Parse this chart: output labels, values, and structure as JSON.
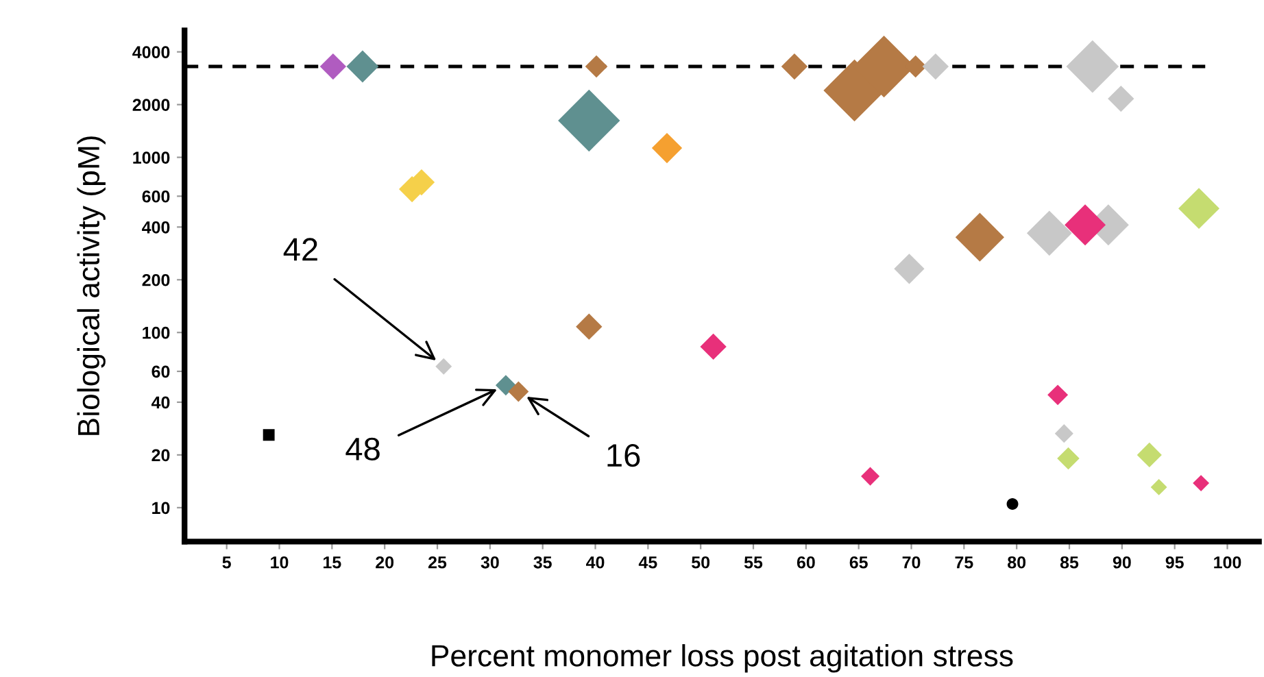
{
  "chart_data": {
    "type": "bubble",
    "xlabel": "Percent monomer loss post agitation stress",
    "ylabel": "Biological activity (pM)",
    "log": "y",
    "xlim": [
      1,
      103
    ],
    "xticks": [
      5,
      10,
      15,
      20,
      25,
      30,
      35,
      40,
      45,
      50,
      55,
      60,
      65,
      70,
      75,
      80,
      85,
      90,
      95,
      100
    ],
    "ylim": [
      6.4,
      5300
    ],
    "yticks": [
      10,
      20,
      40,
      60,
      100,
      200,
      400,
      600,
      1000,
      2000,
      4000
    ],
    "grid": false,
    "legend": false,
    "marker": "diamond",
    "ref_lines": [
      {
        "axis": "y",
        "value": 3300,
        "line_style": "dashed",
        "color": "#000000"
      }
    ],
    "annotations": [
      {
        "text": "42",
        "x": 25.6,
        "y": 64
      },
      {
        "text": "48",
        "x": 31.5,
        "y": 50
      },
      {
        "text": "16",
        "x": 32.7,
        "y": 46
      }
    ],
    "series": [
      {
        "color": "#000000",
        "marker": "square",
        "x": [
          9.0
        ],
        "values": [
          26
        ],
        "sizes": [
          0.07
        ]
      },
      {
        "color": "#000000",
        "marker": "circle",
        "x": [
          79.6
        ],
        "values": [
          10.5
        ],
        "sizes": [
          0.07
        ]
      },
      {
        "color": "#b05cc0",
        "x": [
          15.1
        ],
        "values": [
          3300
        ],
        "sizes": [
          0.18
        ]
      },
      {
        "color": "#5f9090",
        "x": [
          17.9,
          39.4,
          31.5
        ],
        "values": [
          3300,
          1620,
          50
        ],
        "sizes": [
          0.27,
          1,
          0.11
        ]
      },
      {
        "color": "#f5d04a",
        "x": [
          22.6,
          23.5
        ],
        "values": [
          658,
          720
        ],
        "sizes": [
          0.18,
          0.18
        ]
      },
      {
        "color": "#f5a030",
        "x": [
          46.8
        ],
        "values": [
          1130
        ],
        "sizes": [
          0.24
        ]
      },
      {
        "color": "#b57a45",
        "x": [
          40.1,
          39.4,
          32.7,
          58.9,
          64.6,
          67.4,
          70.4,
          76.5
        ],
        "values": [
          3300,
          108,
          46,
          3300,
          2410,
          3300,
          3300,
          350
        ],
        "sizes": [
          0.13,
          0.18,
          0.11,
          0.18,
          1,
          1,
          0.13,
          0.62
        ]
      },
      {
        "color": "#c8c8c8",
        "x": [
          25.6,
          72.3,
          69.8,
          83.1,
          88.7,
          87.2,
          89.9,
          84.5
        ],
        "values": [
          64,
          3300,
          231,
          369,
          411,
          3300,
          2160,
          26.5
        ],
        "sizes": [
          0.07,
          0.18,
          0.24,
          0.53,
          0.44,
          0.72,
          0.18,
          0.09
        ]
      },
      {
        "color": "#e8307a",
        "x": [
          51.2,
          86.5,
          83.9,
          97.5,
          66.1
        ],
        "values": [
          83,
          411,
          44,
          13.8,
          15.1
        ],
        "sizes": [
          0.18,
          0.44,
          0.11,
          0.07,
          0.09
        ]
      },
      {
        "color": "#c5dc70",
        "x": [
          97.3,
          84.9,
          92.6,
          93.5
        ],
        "values": [
          511,
          19.1,
          20,
          13.1
        ],
        "sizes": [
          0.44,
          0.13,
          0.16,
          0.07
        ]
      }
    ]
  }
}
